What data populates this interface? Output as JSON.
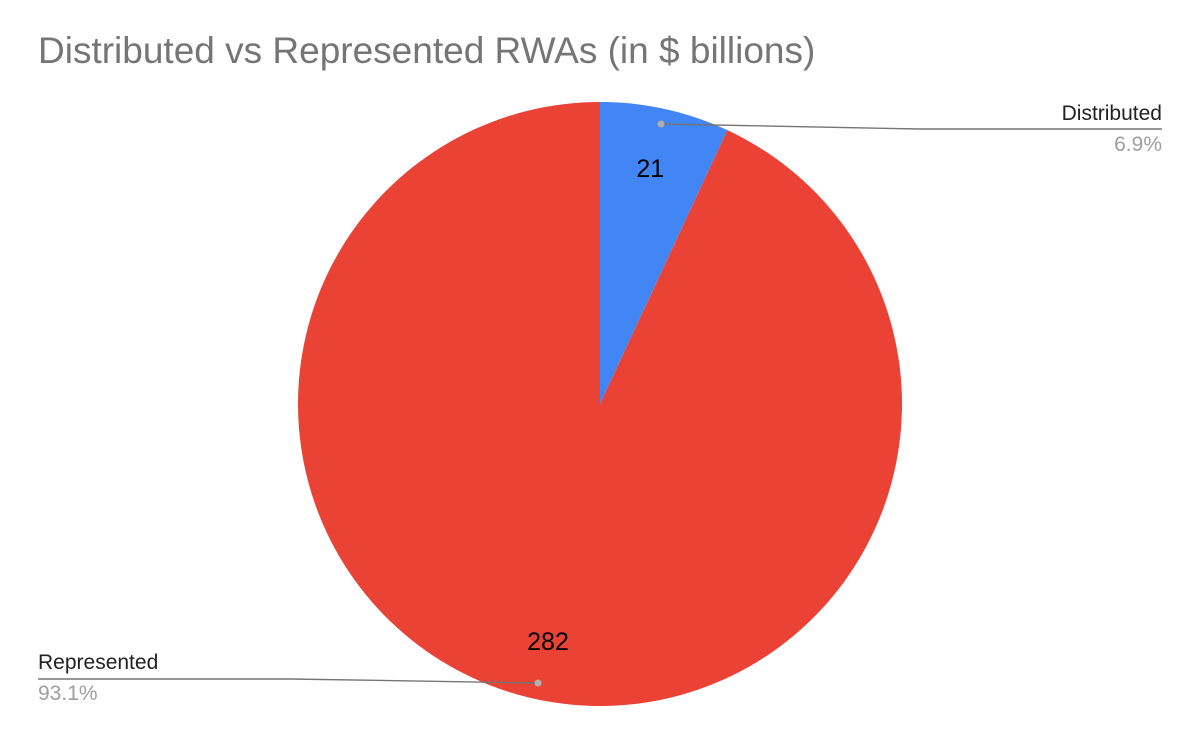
{
  "chart_data": {
    "type": "pie",
    "title": "Distributed vs Represented RWAs (in $ billions)",
    "slices": [
      {
        "name": "Distributed",
        "value": 21,
        "value_label": "21",
        "percent_label": "6.9%",
        "color": "#4285f4",
        "label_side": "top-right"
      },
      {
        "name": "Represented",
        "value": 282,
        "value_label": "282",
        "percent_label": "93.1%",
        "color": "#ea4335",
        "label_side": "bottom-left"
      }
    ],
    "start_angle": "12 o'clock",
    "direction": "clockwise"
  }
}
